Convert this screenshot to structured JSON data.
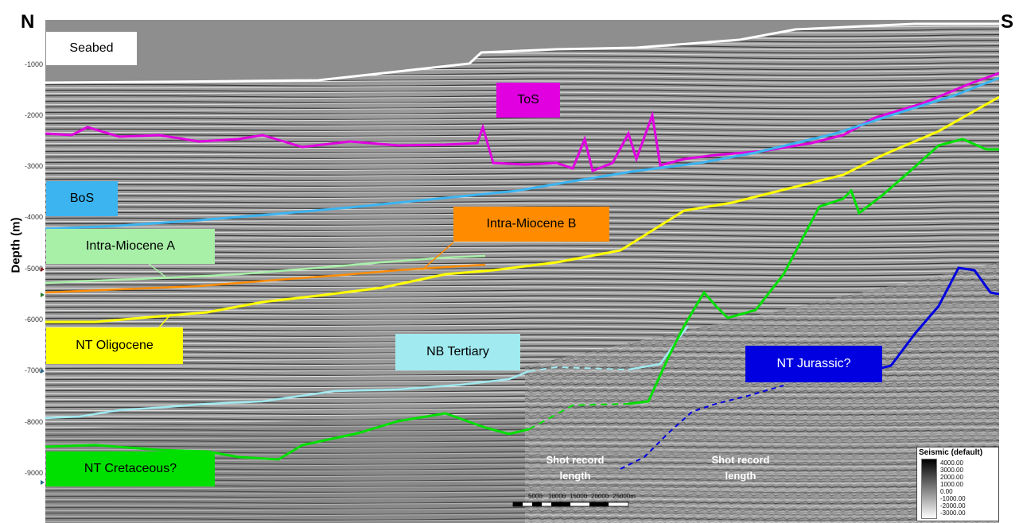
{
  "compass": {
    "left": "N",
    "right": "S"
  },
  "axis": {
    "label": "Depth (m)",
    "ticks": [
      "-1000",
      "-2000",
      "-3000",
      "-4000",
      "-5000",
      "-6000",
      "-7000",
      "-8000",
      "-9000"
    ]
  },
  "horizons": {
    "seabed": {
      "label": "Seabed",
      "color": "#ffffff"
    },
    "tos": {
      "label": "ToS",
      "color": "#e000e0"
    },
    "bos": {
      "label": "BoS",
      "color": "#3cb4f0"
    },
    "intra_miocene_a": {
      "label": "Intra-Miocene A",
      "color": "#a8f0a8"
    },
    "intra_miocene_b": {
      "label": "Intra-Miocene B",
      "color": "#ff8c00"
    },
    "nt_oligocene": {
      "label": "NT Oligocene",
      "color": "#ffff00"
    },
    "nb_tertiary": {
      "label": "NB Tertiary",
      "color": "#a0eaf0"
    },
    "nt_jurassic": {
      "label": "NT Jurassic?",
      "color": "#0000e0"
    },
    "nt_cretaceous": {
      "label": "NT Cretaceous?",
      "color": "#00e000"
    }
  },
  "annotations": {
    "shot_record_1": [
      "Shot record",
      "length"
    ],
    "shot_record_2": [
      "Shot record",
      "length"
    ]
  },
  "scale_bar": {
    "labels": [
      "5000",
      "10000",
      "15000",
      "20000",
      "25000m"
    ]
  },
  "legend": {
    "title": "Seismic (default)",
    "values": [
      "4000.00",
      "3000.00",
      "2000.00",
      "1000.00",
      "0.00",
      "-1000.00",
      "-2000.00",
      "-3000.00"
    ]
  }
}
